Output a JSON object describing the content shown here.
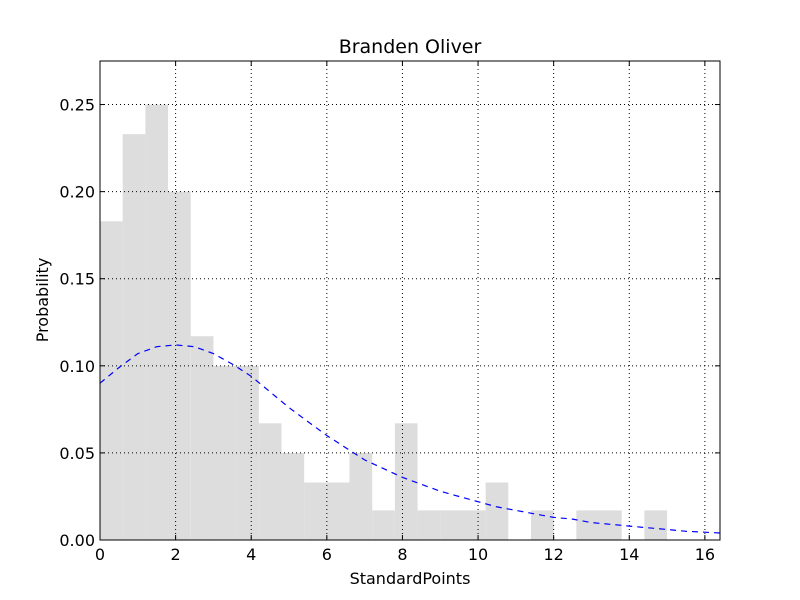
{
  "chart_data": {
    "type": "bar",
    "title": "Branden Oliver",
    "xlabel": "StandardPoints",
    "ylabel": "Probability",
    "xlim": [
      0,
      16.4
    ],
    "ylim": [
      0,
      0.275
    ],
    "x_ticks": [
      0,
      2,
      4,
      6,
      8,
      10,
      12,
      14,
      16
    ],
    "x_tick_labels": [
      "0",
      "2",
      "4",
      "6",
      "8",
      "10",
      "12",
      "14",
      "16"
    ],
    "y_ticks": [
      0.0,
      0.05,
      0.1,
      0.15,
      0.2,
      0.25
    ],
    "y_tick_labels": [
      "0.00",
      "0.05",
      "0.10",
      "0.15",
      "0.20",
      "0.25"
    ],
    "grid": true,
    "grid_style": "dotted",
    "histogram": {
      "bin_width": 0.6,
      "bin_starts": [
        0.0,
        0.6,
        1.2,
        1.8,
        2.4,
        3.0,
        3.6,
        4.2,
        4.8,
        5.4,
        6.0,
        6.6,
        7.2,
        7.8,
        8.4,
        9.0,
        9.6,
        10.2,
        10.8,
        11.4,
        12.0,
        12.6,
        13.2,
        13.8,
        14.4
      ],
      "values": [
        0.183,
        0.233,
        0.25,
        0.2,
        0.117,
        0.1,
        0.1,
        0.067,
        0.05,
        0.033,
        0.033,
        0.05,
        0.017,
        0.067,
        0.017,
        0.017,
        0.017,
        0.033,
        0.0,
        0.017,
        0.0,
        0.017,
        0.017,
        0.0,
        0.017
      ],
      "color": "#dddddd"
    },
    "fit_curve": {
      "style": "dashed",
      "color": "#0000ff",
      "x": [
        0,
        0.5,
        1.0,
        1.5,
        2.0,
        2.5,
        3.0,
        3.5,
        4.0,
        4.5,
        5.0,
        5.5,
        6.0,
        6.5,
        7.0,
        7.5,
        8.0,
        8.5,
        9.0,
        9.5,
        10.0,
        10.5,
        11.0,
        11.5,
        12.0,
        12.5,
        13.0,
        13.5,
        14.0,
        14.5,
        15.0,
        15.5,
        16.0,
        16.4
      ],
      "y": [
        0.09,
        0.099,
        0.107,
        0.111,
        0.112,
        0.111,
        0.107,
        0.101,
        0.094,
        0.085,
        0.076,
        0.068,
        0.06,
        0.053,
        0.046,
        0.041,
        0.036,
        0.032,
        0.028,
        0.025,
        0.022,
        0.019,
        0.017,
        0.015,
        0.013,
        0.012,
        0.01,
        0.009,
        0.008,
        0.007,
        0.006,
        0.005,
        0.0045,
        0.004
      ]
    }
  }
}
